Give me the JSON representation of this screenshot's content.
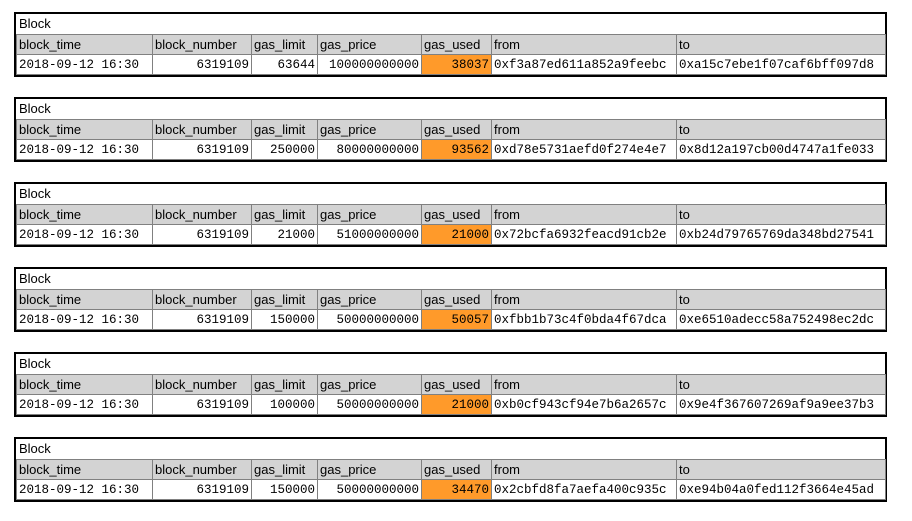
{
  "title": "Block",
  "highlight_color": "#ff9a2a",
  "columns": [
    "block_time",
    "block_number",
    "gas_limit",
    "gas_price",
    "gas_used",
    "from",
    "to"
  ],
  "blocks": [
    {
      "block_time": "2018-09-12 16:30",
      "block_number": "6319109",
      "gas_limit": "63644",
      "gas_price": "100000000000",
      "gas_used": "38037",
      "from": "0xf3a87ed611a852a9feebc",
      "to": "0xa15c7ebe1f07caf6bff097d8"
    },
    {
      "block_time": "2018-09-12 16:30",
      "block_number": "6319109",
      "gas_limit": "250000",
      "gas_price": "80000000000",
      "gas_used": "93562",
      "from": "0xd78e5731aefd0f274e4e7",
      "to": "0x8d12a197cb00d4747a1fe033"
    },
    {
      "block_time": "2018-09-12 16:30",
      "block_number": "6319109",
      "gas_limit": "21000",
      "gas_price": "51000000000",
      "gas_used": "21000",
      "from": "0x72bcfa6932feacd91cb2e",
      "to": "0xb24d79765769da348bd27541"
    },
    {
      "block_time": "2018-09-12 16:30",
      "block_number": "6319109",
      "gas_limit": "150000",
      "gas_price": "50000000000",
      "gas_used": "50057",
      "from": "0xfbb1b73c4f0bda4f67dca",
      "to": "0xe6510adecc58a752498ec2dc"
    },
    {
      "block_time": "2018-09-12 16:30",
      "block_number": "6319109",
      "gas_limit": "100000",
      "gas_price": "50000000000",
      "gas_used": "21000",
      "from": "0xb0cf943cf94e7b6a2657c",
      "to": "0x9e4f367607269af9a9ee37b3"
    },
    {
      "block_time": "2018-09-12 16:30",
      "block_number": "6319109",
      "gas_limit": "150000",
      "gas_price": "50000000000",
      "gas_used": "34470",
      "from": "0x2cbfd8fa7aefa400c935c",
      "to": "0xe94b04a0fed112f3664e45ad"
    }
  ]
}
